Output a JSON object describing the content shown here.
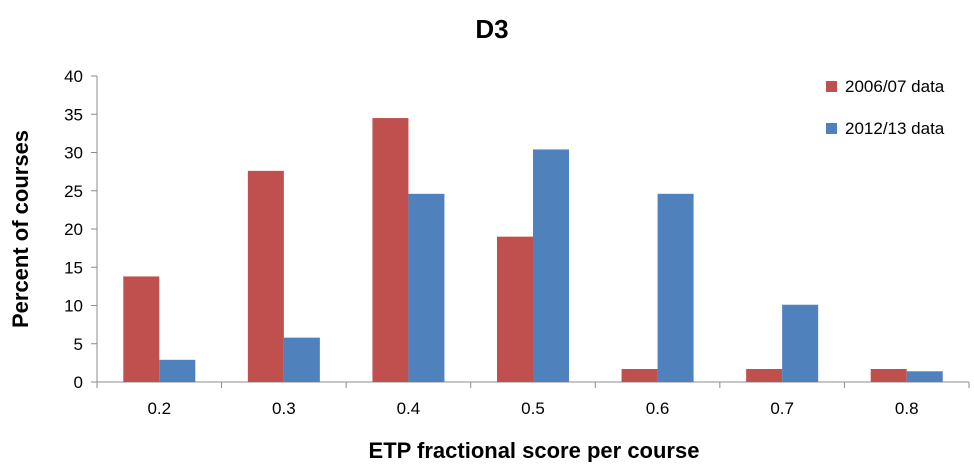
{
  "chart_data": {
    "type": "bar",
    "title": "D3",
    "xlabel": "ETP fractional score per course",
    "ylabel": "Percent of courses",
    "categories": [
      "0.2",
      "0.3",
      "0.4",
      "0.5",
      "0.6",
      "0.7",
      "0.8"
    ],
    "series": [
      {
        "name": "2006/07 data",
        "color": "#c0504d",
        "values": [
          13.8,
          27.6,
          34.5,
          19.0,
          1.7,
          1.7,
          1.7
        ]
      },
      {
        "name": "2012/13 data",
        "color": "#4f81bd",
        "values": [
          2.9,
          5.8,
          24.6,
          30.4,
          24.6,
          10.1,
          1.4
        ]
      }
    ],
    "ylim": [
      0,
      40
    ],
    "yticks": [
      0,
      5,
      10,
      15,
      20,
      25,
      30,
      35,
      40
    ],
    "grid": false,
    "legend_position": "top-right"
  }
}
